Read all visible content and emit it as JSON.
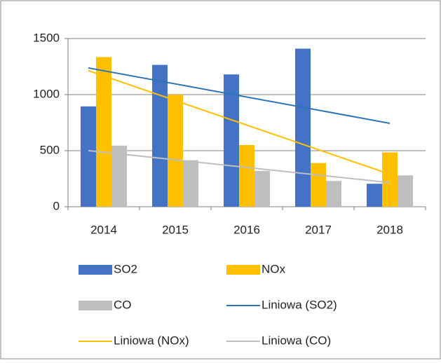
{
  "chart_data": {
    "type": "bar",
    "categories": [
      "2014",
      "2015",
      "2016",
      "2017",
      "2018"
    ],
    "series": [
      {
        "name": "SO2",
        "color": "#4472c4",
        "values": [
          895,
          1265,
          1180,
          1410,
          205
        ]
      },
      {
        "name": "NOx",
        "color": "#ffc000",
        "values": [
          1335,
          1000,
          550,
          390,
          485
        ]
      },
      {
        "name": "CO",
        "color": "#bfbfbf",
        "values": [
          545,
          415,
          320,
          230,
          280
        ]
      }
    ],
    "trendlines": [
      {
        "name": "Liniowa (SO2)",
        "color": "#2e75b6",
        "values": [
          1238,
          744
        ]
      },
      {
        "name": "Liniowa (NOx)",
        "color": "#ffc000",
        "values": [
          1214,
          290
        ]
      },
      {
        "name": "Liniowa (CO)",
        "color": "#bfbfbf",
        "values": [
          501,
          215
        ]
      }
    ],
    "ylim": [
      0,
      1500
    ],
    "yticks": [
      0,
      500,
      1000,
      1500
    ],
    "grid": true
  }
}
